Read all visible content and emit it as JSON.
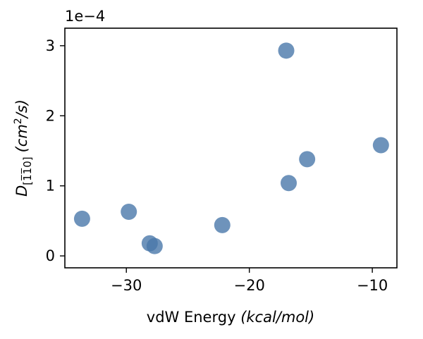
{
  "chart_data": {
    "type": "scatter",
    "xlabel_text": "vdW Energy ",
    "xlabel_italic": "(kcal/mol)",
    "ylabel_symbol": "D",
    "ylabel_subscript": "[1̅1̅0]",
    "ylabel_units_prefix": "(cm",
    "ylabel_units_sup": "2",
    "ylabel_units_suffix": "/s)",
    "y_offset_label": "1e−4",
    "xlim": [
      -35,
      -8
    ],
    "ylim": [
      -0.17,
      3.25
    ],
    "x_ticks": [
      -30,
      -20,
      -10
    ],
    "x_tick_labels": [
      "−30",
      "−20",
      "−10"
    ],
    "y_ticks": [
      0,
      1,
      2,
      3
    ],
    "y_tick_labels": [
      "0",
      "1",
      "2",
      "3"
    ],
    "marker_color": "#4a78aa",
    "marker_opacity": 0.8,
    "points": [
      {
        "x": -33.6,
        "y": 0.53
      },
      {
        "x": -29.8,
        "y": 0.63
      },
      {
        "x": -28.1,
        "y": 0.18
      },
      {
        "x": -27.7,
        "y": 0.14
      },
      {
        "x": -22.2,
        "y": 0.44
      },
      {
        "x": -17.0,
        "y": 2.93
      },
      {
        "x": -16.8,
        "y": 1.04
      },
      {
        "x": -15.3,
        "y": 1.38
      },
      {
        "x": -9.3,
        "y": 1.58
      }
    ]
  }
}
